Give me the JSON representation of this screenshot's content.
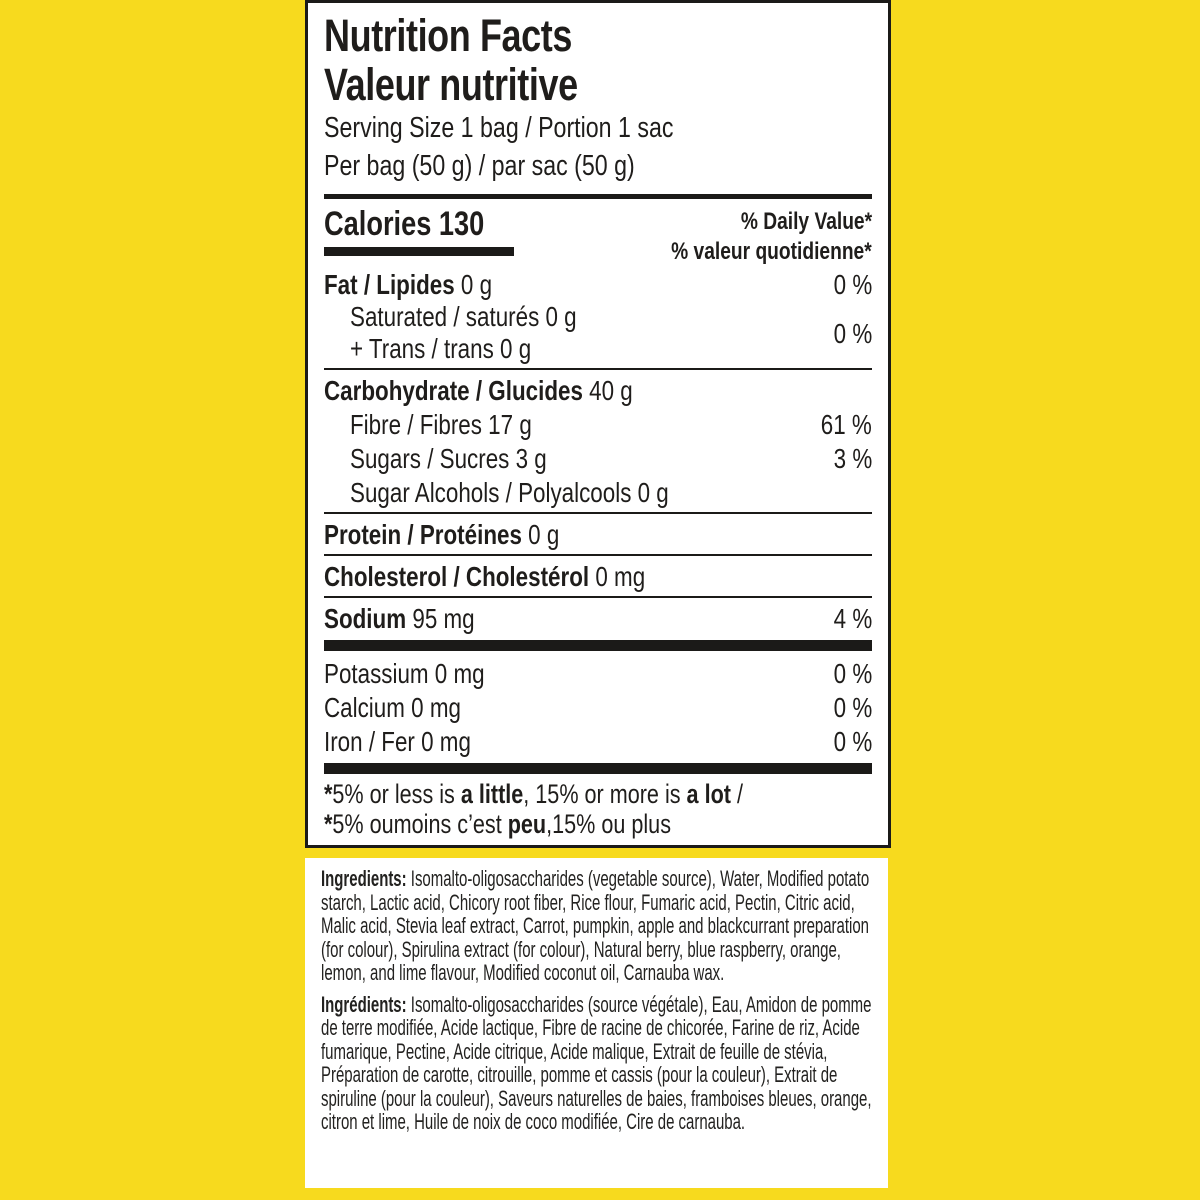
{
  "colors": {
    "background": "#F7DA1E",
    "panel": "#FFFFFF",
    "ink": "#1F1D1B"
  },
  "nutrition_label": {
    "title_en": "Nutrition Facts",
    "title_fr": "Valeur nutritive",
    "serving_size": "Serving Size 1 bag / Portion 1 sac",
    "per_serving": "Per bag (50 g) / par sac (50 g)",
    "calories_label": "Calories",
    "calories_value": "130",
    "dv_header_en": "% Daily Value*",
    "dv_header_fr": "% valeur quotidienne*",
    "rows": {
      "fat": {
        "name": "Fat / Lipides",
        "value": "0 g",
        "dv": "0 %"
      },
      "saturated": {
        "name": "Saturated / saturés",
        "value": "0 g"
      },
      "trans": {
        "name": "+ Trans / trans",
        "value": "0 g"
      },
      "saturated_trans_dv": "0 %",
      "carbohydrate": {
        "name": "Carbohydrate / Glucides",
        "value": "40 g"
      },
      "fibre": {
        "name": "Fibre / Fibres",
        "value": "17 g",
        "dv": "61 %"
      },
      "sugars": {
        "name": "Sugars / Sucres",
        "value": "3 g",
        "dv": "3 %"
      },
      "sugar_alcohols": {
        "name": "Sugar Alcohols / Polyalcools",
        "value": "0 g"
      },
      "protein": {
        "name": "Protein / Protéines",
        "value": "0 g"
      },
      "cholesterol": {
        "name": "Cholesterol / Cholestérol",
        "value": "0 mg"
      },
      "sodium": {
        "name": "Sodium",
        "value": "95 mg",
        "dv": "4 %"
      },
      "potassium": {
        "name": "Potassium",
        "value": "0 mg",
        "dv": "0 %"
      },
      "calcium": {
        "name": "Calcium",
        "value": "0 mg",
        "dv": "0 %"
      },
      "iron": {
        "name": "Iron / Fer",
        "value": "0 mg",
        "dv": "0 %"
      }
    },
    "footnote_en": {
      "star": "*",
      "p1": "5% or less is ",
      "b1": "a little",
      "p2": ", 15% or more is ",
      "b2": "a lot",
      "p3": " /"
    },
    "footnote_fr": {
      "star": "*",
      "p1": "5% oumoins c’est ",
      "b1": "peu",
      "p2": ",15% ou plus"
    }
  },
  "ingredients": {
    "label_en": "Ingredients:",
    "text_en": "Isomalto-oligosaccharides (vegetable source), Water, Modified potato starch, Lactic acid, Chicory root fiber, Rice flour, Fumaric acid, Pectin, Citric acid, Malic acid, Stevia leaf extract, Carrot, pumpkin, apple and blackcurrant preparation (for colour), Spirulina extract (for colour), Natural berry, blue raspberry, orange, lemon, and lime flavour, Modified coconut oil, Carnauba wax.",
    "label_fr": "Ingrédients:",
    "text_fr": "Isomalto-oligosaccharides (source végétale), Eau, Amidon de pomme de terre modifiée, Acide lactique, Fibre de racine de chicorée, Farine de riz, Acide fumarique, Pectine, Acide citrique, Acide malique, Extrait de feuille de stévia, Préparation de carotte, citrouille, pomme et cassis (pour la couleur), Extrait de spiruline (pour la couleur), Saveurs naturelles de baies, framboises bleues, orange, citron et lime, Huile de noix de coco modifiée, Cire de carnauba."
  }
}
